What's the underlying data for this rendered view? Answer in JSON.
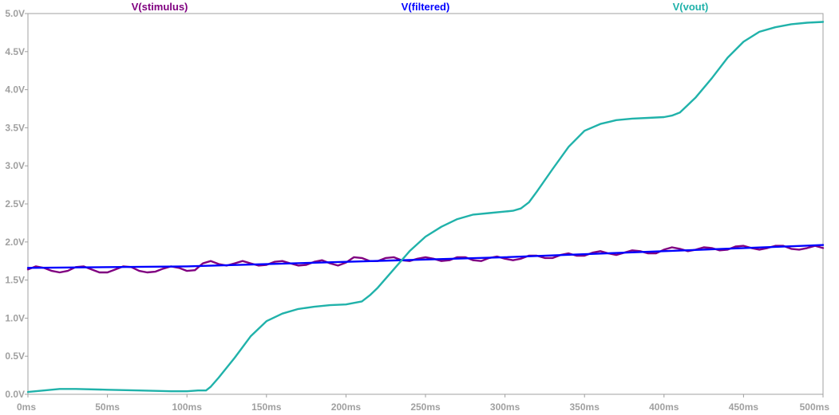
{
  "chart_data": {
    "type": "line",
    "title": "",
    "xlabel": "",
    "ylabel": "",
    "xlim": [
      0,
      500
    ],
    "ylim": [
      0,
      5
    ],
    "grid": false,
    "legend_position": "top",
    "x_tick_labels": [
      "0ms",
      "50ms",
      "100ms",
      "150ms",
      "200ms",
      "250ms",
      "300ms",
      "350ms",
      "400ms",
      "450ms",
      "500ms"
    ],
    "x_tick_values": [
      0,
      50,
      100,
      150,
      200,
      250,
      300,
      350,
      400,
      450,
      500
    ],
    "y_tick_labels": [
      "0.0V",
      "0.5V",
      "1.0V",
      "1.5V",
      "2.0V",
      "2.5V",
      "3.0V",
      "3.5V",
      "4.0V",
      "4.5V",
      "5.0V"
    ],
    "y_tick_values": [
      0,
      0.5,
      1,
      1.5,
      2,
      2.5,
      3,
      3.5,
      4,
      4.5,
      5
    ],
    "colors": {
      "axis": "#a0a0a0",
      "background": "#ffffff"
    },
    "series": [
      {
        "name": "V(stimulus)",
        "color": "#800080",
        "x": [
          0,
          5,
          10,
          15,
          20,
          25,
          30,
          35,
          40,
          45,
          50,
          55,
          60,
          65,
          70,
          75,
          80,
          85,
          90,
          95,
          100,
          105,
          110,
          115,
          120,
          125,
          130,
          135,
          140,
          145,
          150,
          155,
          160,
          165,
          170,
          175,
          180,
          185,
          190,
          195,
          200,
          205,
          210,
          215,
          220,
          225,
          230,
          235,
          240,
          245,
          250,
          255,
          260,
          265,
          270,
          275,
          280,
          285,
          290,
          295,
          300,
          305,
          310,
          315,
          320,
          325,
          330,
          335,
          340,
          345,
          350,
          355,
          360,
          365,
          370,
          375,
          380,
          385,
          390,
          395,
          400,
          405,
          410,
          415,
          420,
          425,
          430,
          435,
          440,
          445,
          450,
          455,
          460,
          465,
          470,
          475,
          480,
          485,
          490,
          495,
          500
        ],
        "values": [
          1.64,
          1.68,
          1.66,
          1.62,
          1.6,
          1.62,
          1.67,
          1.68,
          1.64,
          1.6,
          1.6,
          1.64,
          1.68,
          1.67,
          1.62,
          1.6,
          1.61,
          1.65,
          1.68,
          1.66,
          1.62,
          1.63,
          1.72,
          1.75,
          1.71,
          1.69,
          1.72,
          1.75,
          1.72,
          1.69,
          1.7,
          1.74,
          1.75,
          1.72,
          1.69,
          1.7,
          1.74,
          1.76,
          1.72,
          1.69,
          1.73,
          1.8,
          1.79,
          1.75,
          1.75,
          1.79,
          1.8,
          1.76,
          1.75,
          1.78,
          1.8,
          1.78,
          1.75,
          1.76,
          1.8,
          1.8,
          1.76,
          1.75,
          1.79,
          1.81,
          1.78,
          1.76,
          1.78,
          1.82,
          1.82,
          1.79,
          1.79,
          1.83,
          1.85,
          1.82,
          1.82,
          1.86,
          1.88,
          1.85,
          1.83,
          1.86,
          1.89,
          1.88,
          1.85,
          1.85,
          1.9,
          1.93,
          1.91,
          1.88,
          1.9,
          1.93,
          1.92,
          1.89,
          1.9,
          1.94,
          1.95,
          1.92,
          1.9,
          1.92,
          1.95,
          1.95,
          1.91,
          1.9,
          1.92,
          1.95,
          1.92
        ]
      },
      {
        "name": "V(filtered)",
        "color": "#0000ff",
        "x": [
          0,
          100,
          200,
          300,
          400,
          500
        ],
        "values": [
          1.66,
          1.68,
          1.74,
          1.8,
          1.88,
          1.96
        ]
      },
      {
        "name": "V(vout)",
        "color": "#20b2aa",
        "x": [
          0,
          10,
          20,
          30,
          50,
          70,
          90,
          100,
          107,
          112,
          115,
          120,
          130,
          140,
          150,
          160,
          170,
          180,
          190,
          200,
          210,
          215,
          220,
          230,
          240,
          250,
          260,
          270,
          280,
          290,
          300,
          305,
          310,
          315,
          320,
          330,
          340,
          350,
          360,
          370,
          380,
          390,
          400,
          405,
          410,
          415,
          420,
          430,
          440,
          450,
          460,
          470,
          480,
          490,
          500
        ],
        "values": [
          0.03,
          0.05,
          0.07,
          0.07,
          0.06,
          0.05,
          0.04,
          0.04,
          0.05,
          0.05,
          0.1,
          0.22,
          0.48,
          0.76,
          0.96,
          1.06,
          1.12,
          1.15,
          1.17,
          1.18,
          1.22,
          1.3,
          1.4,
          1.64,
          1.88,
          2.07,
          2.2,
          2.3,
          2.36,
          2.38,
          2.4,
          2.41,
          2.44,
          2.52,
          2.66,
          2.96,
          3.25,
          3.46,
          3.55,
          3.6,
          3.62,
          3.63,
          3.64,
          3.66,
          3.7,
          3.8,
          3.9,
          4.15,
          4.42,
          4.63,
          4.76,
          4.82,
          4.86,
          4.88,
          4.89
        ]
      }
    ]
  }
}
